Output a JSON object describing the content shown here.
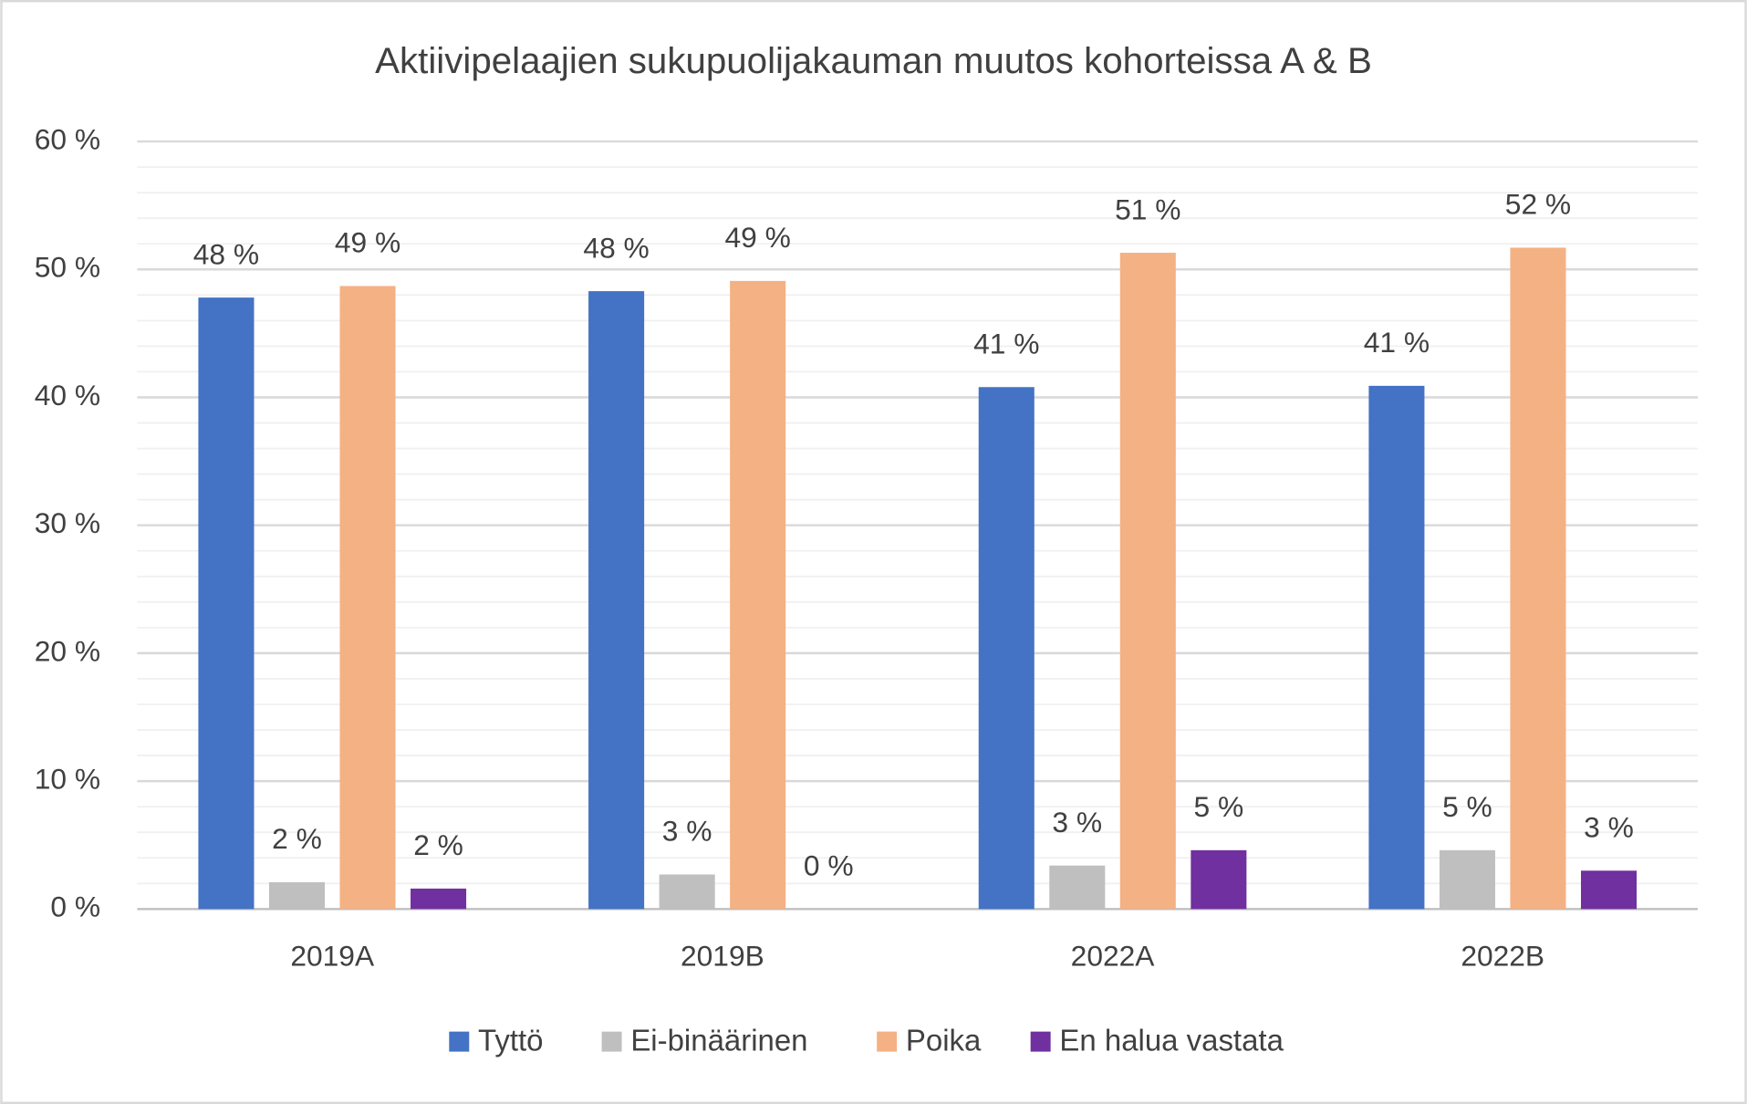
{
  "chart_data": {
    "type": "bar",
    "title": "Aktiivipelaajien sukupuolijakauman muutos kohorteissa A & B",
    "categories": [
      "2019A",
      "2019B",
      "2022A",
      "2022B"
    ],
    "series": [
      {
        "name": "Tyttö",
        "color": "#4472c4",
        "values": [
          47.8,
          48.3,
          40.8,
          40.9
        ],
        "value_labels": [
          "48 %",
          "48 %",
          "41 %",
          "41 %"
        ]
      },
      {
        "name": "Ei-binäärinen",
        "color": "#bfbfbf",
        "values": [
          2.1,
          2.7,
          3.4,
          4.6
        ],
        "value_labels": [
          "2 %",
          "3 %",
          "3 %",
          "5 %"
        ]
      },
      {
        "name": "Poika",
        "color": "#f4b183",
        "values": [
          48.7,
          49.1,
          51.3,
          51.7
        ],
        "value_labels": [
          "49 %",
          "49 %",
          "51 %",
          "52 %"
        ]
      },
      {
        "name": "En halua vastata",
        "color": "#7030a0",
        "values": [
          1.6,
          0,
          4.6,
          3.0
        ],
        "value_labels": [
          "2 %",
          "0 %",
          "5 %",
          "3 %"
        ]
      }
    ],
    "ylim": [
      0,
      60
    ],
    "yticks": [
      {
        "value": 0,
        "label": "0 %"
      },
      {
        "value": 10,
        "label": "10 %"
      },
      {
        "value": 20,
        "label": "20 %"
      },
      {
        "value": 30,
        "label": "30 %"
      },
      {
        "value": 40,
        "label": "40 %"
      },
      {
        "value": 50,
        "label": "50 %"
      },
      {
        "value": 60,
        "label": "60 %"
      }
    ],
    "yminorticks": [
      2,
      4,
      6,
      8,
      12,
      14,
      16,
      18,
      22,
      24,
      26,
      28,
      32,
      34,
      36,
      38,
      42,
      44,
      46,
      48,
      52,
      54,
      56,
      58
    ],
    "grid": true,
    "legend": "bottom"
  }
}
